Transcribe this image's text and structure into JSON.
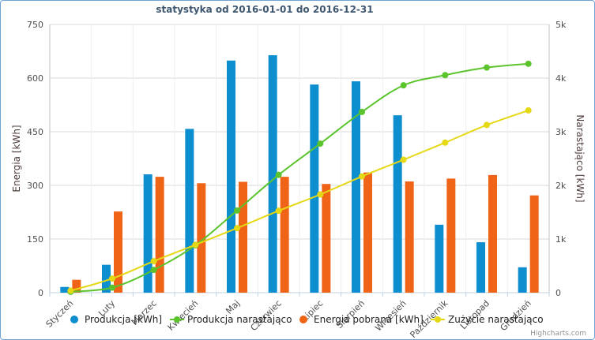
{
  "chart_data": {
    "type": "bar",
    "title": "statystyka od 2016-01-01 do 2016-12-31",
    "categories": [
      "Styczeń",
      "Luty",
      "Marzec",
      "Kwiecień",
      "Maj",
      "Czerwiec",
      "Lipiec",
      "Sierpień",
      "Wrzesień",
      "Październik",
      "Listopad",
      "Grudzień"
    ],
    "y_left": {
      "title": "Energia [kWh]",
      "min": 0,
      "max": 750,
      "ticks": [
        "0",
        "150",
        "300",
        "450",
        "600",
        "750"
      ]
    },
    "y_right": {
      "title": "Narastająco [kWh]",
      "min": 0,
      "max": 5000,
      "ticks": [
        "0",
        "1k",
        "2k",
        "3k",
        "4k",
        "5k"
      ]
    },
    "grid": true,
    "legend": "bottom",
    "series": [
      {
        "name": "Produkcja [kWh]",
        "type": "bar",
        "axis": "left",
        "color": "#0d8ecf",
        "values": [
          16,
          78,
          331,
          458,
          649,
          664,
          582,
          591,
          496,
          190,
          141,
          71
        ]
      },
      {
        "name": "Produkcja narastająco",
        "type": "line",
        "axis": "right",
        "color": "#5bc42d",
        "values": [
          16,
          94,
          425,
          883,
          1532,
          2196,
          2778,
          3369,
          3865,
          4055,
          4196,
          4267
        ]
      },
      {
        "name": "Energia pobrana [kWh]",
        "type": "bar",
        "axis": "left",
        "color": "#f06418",
        "values": [
          36,
          227,
          324,
          306,
          310,
          324,
          304,
          336,
          311,
          319,
          329,
          272
        ]
      },
      {
        "name": "Zużycie narastająco",
        "type": "line",
        "axis": "right",
        "color": "#e5d814",
        "values": [
          36,
          263,
          587,
          893,
          1203,
          1527,
          1831,
          2167,
          2478,
          2797,
          3126,
          3398
        ]
      }
    ]
  },
  "credit": "Highcharts.com"
}
